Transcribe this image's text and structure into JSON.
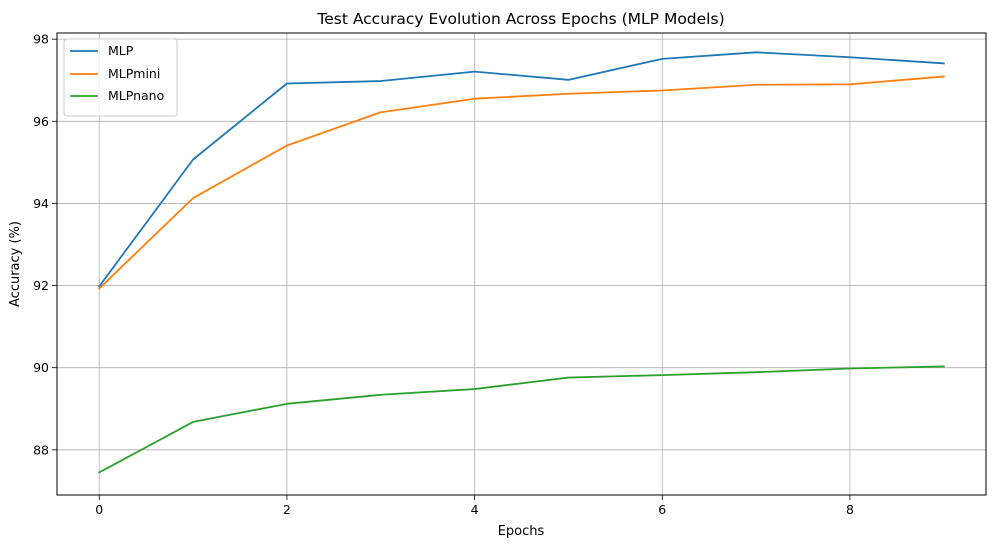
{
  "chart_data": {
    "type": "line",
    "title": "Test Accuracy Evolution Across Epochs (MLP Models)",
    "xlabel": "Epochs",
    "ylabel": "Accuracy (%)",
    "x": [
      0,
      1,
      2,
      3,
      4,
      5,
      6,
      7,
      8,
      9
    ],
    "xlim": [
      -0.45,
      9.45
    ],
    "ylim": [
      86.9,
      98.15
    ],
    "xticks": [
      0,
      2,
      4,
      6,
      8
    ],
    "yticks": [
      88,
      90,
      92,
      94,
      96,
      98
    ],
    "grid": true,
    "legend_position": "top-left",
    "series": [
      {
        "name": "MLP",
        "color": "#1f77b4",
        "values": [
          91.98,
          95.07,
          96.92,
          96.98,
          97.21,
          97.01,
          97.52,
          97.68,
          97.56,
          97.41
        ]
      },
      {
        "name": "MLPmini",
        "color": "#ff7f0e",
        "values": [
          91.93,
          94.13,
          95.41,
          96.22,
          96.55,
          96.67,
          96.75,
          96.89,
          96.9,
          97.09
        ]
      },
      {
        "name": "MLPnano",
        "color": "#2ca02c",
        "values": [
          87.45,
          88.68,
          89.12,
          89.34,
          89.48,
          89.76,
          89.82,
          89.89,
          89.98,
          90.03
        ]
      }
    ]
  }
}
